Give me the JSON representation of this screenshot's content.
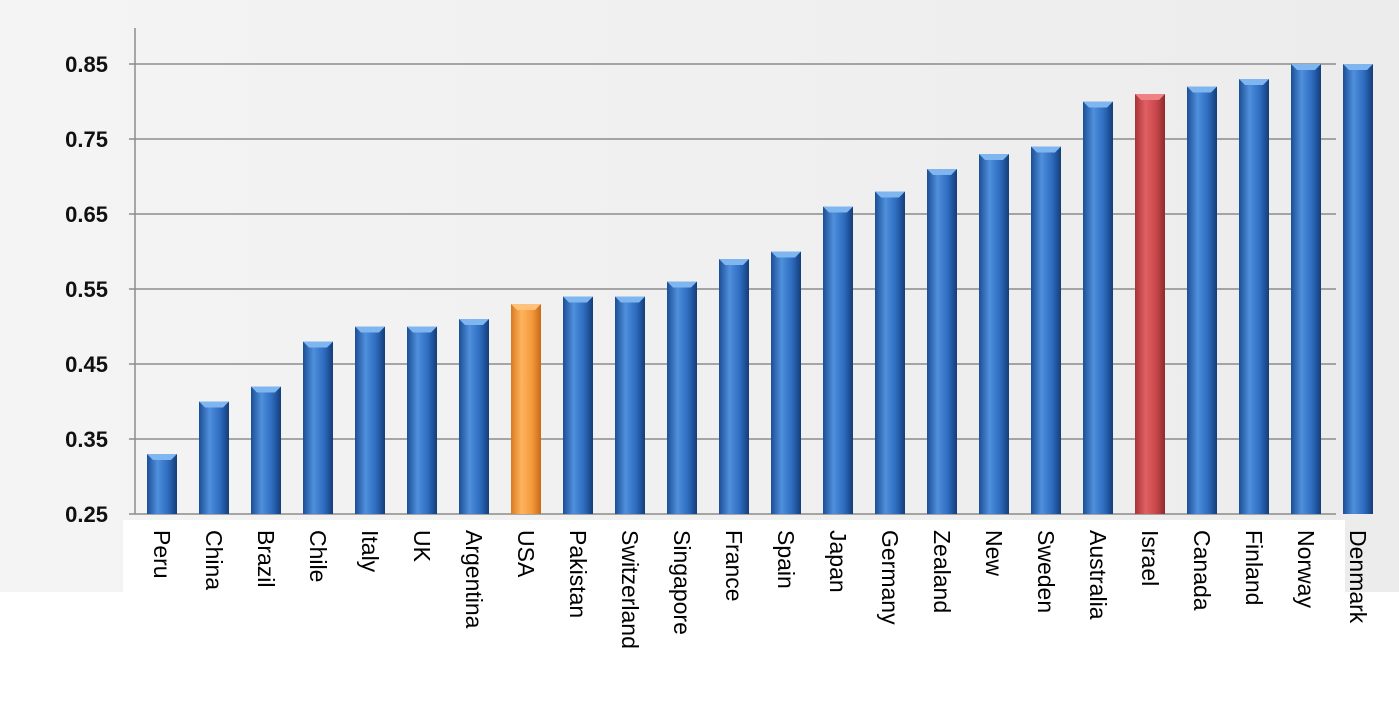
{
  "chart_data": {
    "type": "bar",
    "title": "",
    "xlabel": "",
    "ylabel": "",
    "ylim": [
      0.25,
      0.88
    ],
    "yticks": [
      "0.25",
      "0.35",
      "0.45",
      "0.55",
      "0.65",
      "0.75",
      "0.85"
    ],
    "grid": true,
    "legend": "none",
    "categories": [
      "Peru",
      "China",
      "Brazil",
      "Chile",
      "Italy",
      "UK",
      "Argentina",
      "USA",
      "Pakistan",
      "Switzerland",
      "Singapore",
      "France",
      "Spain",
      "Japan",
      "Germany",
      "Zealand",
      "New",
      "Sweden",
      "Australia",
      "Israel",
      "Canada",
      "Finland",
      "Norway",
      "Denmark"
    ],
    "values": [
      0.33,
      0.4,
      0.42,
      0.48,
      0.5,
      0.5,
      0.51,
      0.53,
      0.54,
      0.54,
      0.56,
      0.59,
      0.6,
      0.66,
      0.68,
      0.71,
      0.73,
      0.74,
      0.8,
      0.81,
      0.82,
      0.83,
      0.85,
      0.85
    ],
    "colors": {
      "default": "#2f6fbf",
      "highlight_usa": "#f39a3c",
      "highlight_israel": "#c9474a"
    },
    "highlights": {
      "USA": "highlight_usa",
      "Israel": "highlight_israel"
    }
  }
}
